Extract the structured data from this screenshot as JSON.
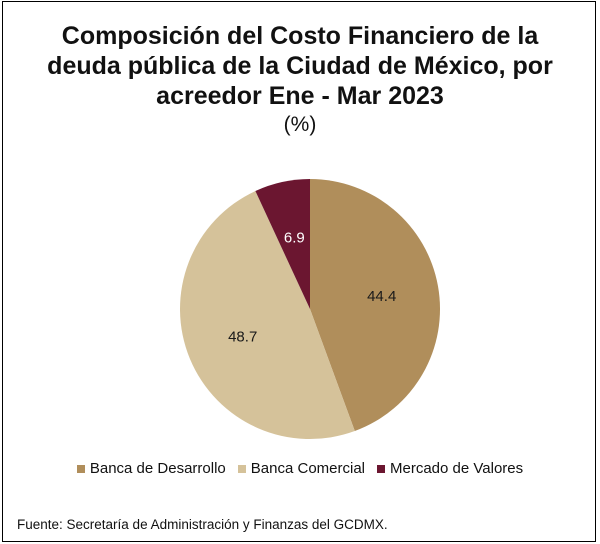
{
  "chart_data": {
    "type": "pie",
    "title_lines": [
      "Composición del Costo Financiero de la",
      "deuda pública  de la Ciudad de México, por",
      "acreedor Ene - Mar 2023"
    ],
    "subtitle": "(%)",
    "slices": [
      {
        "label": "Banca de Desarrollo",
        "value": 44.4,
        "display": "44.4",
        "color": "#b08e5b",
        "text_color": "#1a1a1a"
      },
      {
        "label": "Banca Comercial",
        "value": 48.7,
        "display": "48.7",
        "color": "#d5c29a",
        "text_color": "#1a1a1a"
      },
      {
        "label": "Mercado de Valores",
        "value": 6.9,
        "display": "6.9",
        "color": "#6b1630",
        "text_color": "#ffffff"
      }
    ],
    "start_angle_deg": 0,
    "direction": "clockwise",
    "legend_position": "bottom"
  },
  "source": "Fuente: Secretaría de Administración y Finanzas del GCDMX."
}
